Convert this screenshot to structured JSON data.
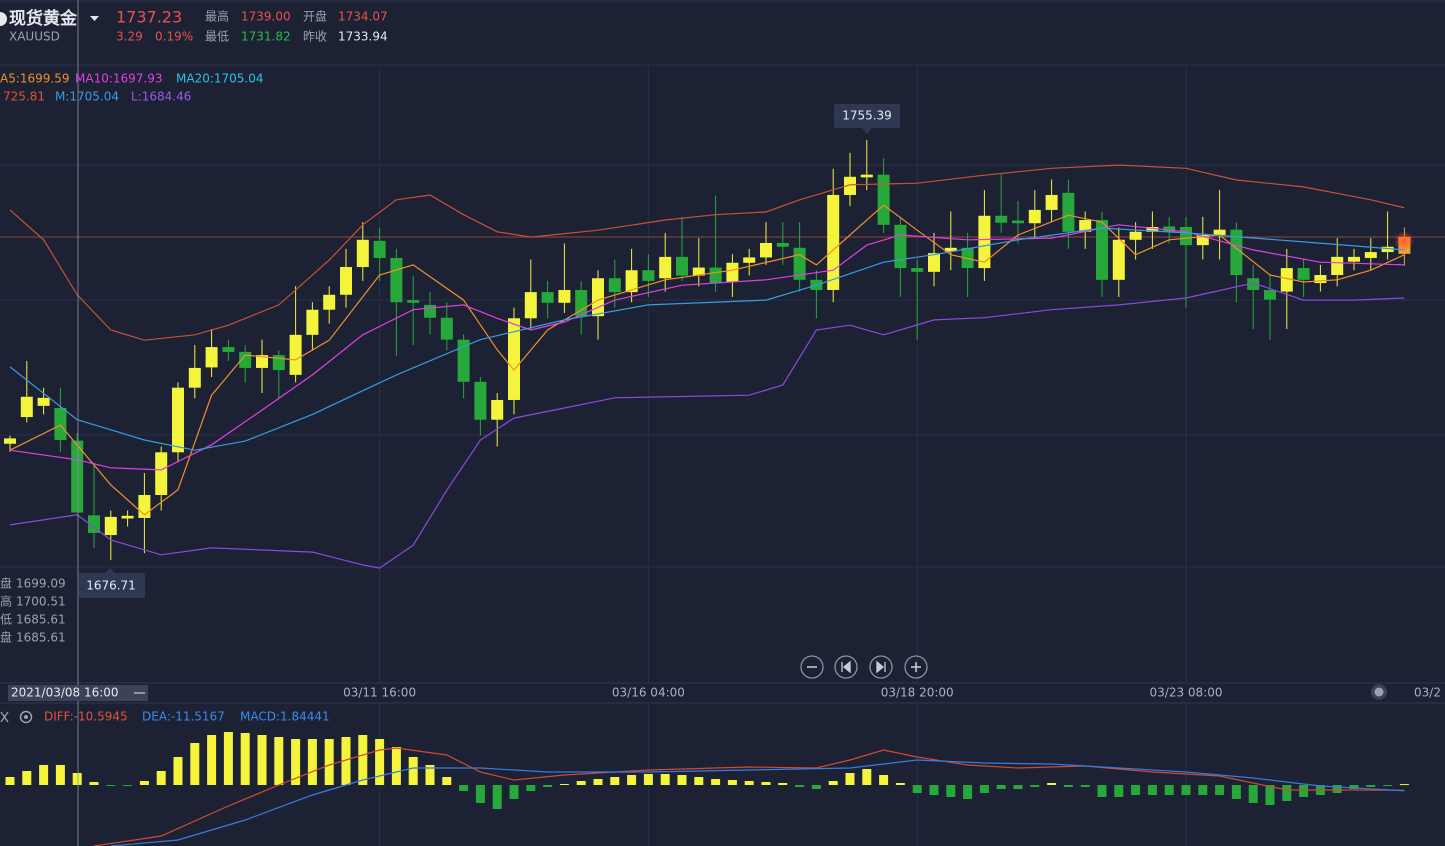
{
  "header": {
    "name": "现货黄金",
    "symbol": "XAUUSD",
    "price": "1737.23",
    "change": "3.29",
    "change_pct": "0.19%",
    "high_label": "最高",
    "high": "1739.00",
    "open_label": "开盘",
    "open": "1734.07",
    "low_label": "最低",
    "low": "1731.82",
    "prev_close_label": "昨收",
    "prev_close": "1733.94"
  },
  "legend_ma": [
    {
      "text": "A5:1699.59",
      "color": "#f0902c"
    },
    {
      "text": "MA10:1697.93",
      "color": "#e040e0"
    },
    {
      "text": "MA20:1705.04",
      "color": "#2fc0e8"
    }
  ],
  "legend_boll": [
    {
      "text": "725.81",
      "color": "#e0503a"
    },
    {
      "text": "M:1705.04",
      "color": "#3a9ae0"
    },
    {
      "text": "L:1684.46",
      "color": "#9a5ae8"
    }
  ],
  "legend_macd": [
    {
      "text": "DIFF:-10.5945",
      "color": "#e0503a"
    },
    {
      "text": "DEA:-11.5167",
      "color": "#3a8ae8"
    },
    {
      "text": "MACD:1.84441",
      "color": "#3a8ae8"
    }
  ],
  "crosshair": {
    "label": "2021/03/08 16:00",
    "fields": [
      "盘",
      "高",
      "低",
      "盘"
    ]
  },
  "x_edge_label": "03/2",
  "chart_data": [
    {
      "type": "candlestick",
      "categories": [
        null,
        null,
        null,
        null,
        null,
        null,
        null,
        null,
        null,
        null,
        null,
        null,
        null,
        null,
        null,
        null,
        null,
        null,
        null,
        null,
        null,
        null,
        "03/11 16:00",
        null,
        null,
        null,
        null,
        null,
        null,
        null,
        null,
        null,
        null,
        null,
        null,
        null,
        null,
        null,
        "03/16 04:00",
        null,
        null,
        null,
        null,
        null,
        null,
        null,
        null,
        null,
        null,
        null,
        null,
        null,
        null,
        null,
        "03/18 20:00",
        null,
        null,
        null,
        null,
        null,
        null,
        null,
        null,
        null,
        null,
        null,
        null,
        null,
        null,
        null,
        "03/23 08:00",
        null,
        null,
        null,
        null,
        null,
        null,
        null,
        null,
        null,
        null,
        null,
        null,
        null
      ],
      "open": [
        1698.5,
        1703.5,
        1705.6,
        1705.2,
        1699.09,
        1685.1,
        1681.4,
        1684.5,
        1684.6,
        1688.9,
        1696.9,
        1709,
        1712.8,
        1716.6,
        1715.7,
        1712.7,
        1715.1,
        1711.4,
        1718.9,
        1723.6,
        1726.4,
        1731.6,
        1736.5,
        1733.3,
        1725.4,
        1724.5,
        1722.1,
        1718,
        1710.1,
        1703,
        1706.7,
        1722,
        1726.9,
        1724.9,
        1727.3,
        1722.4,
        1729.5,
        1726.9,
        1731,
        1729.5,
        1733.5,
        1730,
        1731.5,
        1728.8,
        1732.4,
        1733.4,
        1736.1,
        1735.2,
        1729.2,
        1727.3,
        1745.1,
        1748.4,
        1748.9,
        1739.5,
        1731.4,
        1730.7,
        1734.5,
        1735.2,
        1731.4,
        1741.2,
        1740.3,
        1739.8,
        1742.3,
        1745.5,
        1738.2,
        1740.4,
        1729.2,
        1736.7,
        1738.2,
        1739.2,
        1739.1,
        1735.7,
        1737.6,
        1738.6,
        1729.5,
        1727.3,
        1727,
        1731.4,
        1728.6,
        1730.1,
        1732.6,
        1733.3,
        1734.4,
        1734.07
      ],
      "high": [
        1700,
        1714,
        1709,
        1709,
        1700.51,
        1695,
        1686,
        1686,
        1693,
        1698,
        1710,
        1717,
        1720,
        1718,
        1717,
        1718,
        1716,
        1728,
        1725,
        1728,
        1735,
        1740,
        1739,
        1735,
        1730,
        1727,
        1725,
        1719,
        1711,
        1708,
        1724,
        1733,
        1729,
        1736,
        1729,
        1731,
        1733,
        1735,
        1734,
        1738,
        1741,
        1737,
        1745,
        1734,
        1735,
        1740,
        1740,
        1740,
        1731,
        1750,
        1753,
        1755.39,
        1752,
        1741,
        1733,
        1738,
        1742,
        1738,
        1746,
        1749,
        1744,
        1746,
        1748,
        1748,
        1742,
        1742,
        1739,
        1740,
        1742,
        1741,
        1741,
        1741,
        1746,
        1740,
        1732,
        1730,
        1735,
        1733,
        1732,
        1737,
        1735,
        1737,
        1742,
        1739
      ],
      "low": [
        1697,
        1702.5,
        1704,
        1697,
        1685.61,
        1679,
        1676.71,
        1683,
        1678,
        1686,
        1695,
        1707,
        1711,
        1714,
        1710,
        1708,
        1707,
        1710,
        1716,
        1721,
        1724,
        1729,
        1729,
        1715,
        1717,
        1719,
        1716,
        1707,
        1700,
        1698,
        1704,
        1720,
        1722,
        1723,
        1719,
        1718,
        1724,
        1725,
        1726,
        1727,
        1729,
        1728,
        1727,
        1726,
        1730,
        1732,
        1732,
        1727,
        1722,
        1725,
        1743,
        1746,
        1738,
        1726,
        1718,
        1728,
        1731,
        1726,
        1729,
        1738,
        1736,
        1737,
        1740,
        1735,
        1735,
        1726,
        1726,
        1733,
        1735,
        1736,
        1724,
        1733,
        1733,
        1725,
        1720,
        1718,
        1720,
        1726,
        1727,
        1728,
        1731,
        1731,
        1733,
        1731.82
      ],
      "close": [
        1699.5,
        1707.3,
        1707.1,
        1699.2,
        1685.61,
        1681.8,
        1684.8,
        1685,
        1688.9,
        1696.9,
        1709,
        1712.7,
        1716.6,
        1715.7,
        1712.7,
        1715.1,
        1712.3,
        1718.9,
        1723.6,
        1726.4,
        1731.6,
        1736.7,
        1733.3,
        1725,
        1724.9,
        1722.1,
        1718,
        1710.1,
        1703,
        1706.7,
        1722,
        1726.9,
        1724.9,
        1727.3,
        1722.4,
        1729.5,
        1726.9,
        1731,
        1729,
        1733.5,
        1730,
        1731.5,
        1728.6,
        1732.4,
        1733.4,
        1736.1,
        1735.4,
        1729.2,
        1727.3,
        1745.1,
        1748.5,
        1748.9,
        1739.5,
        1731.4,
        1730.7,
        1734.2,
        1735.2,
        1731.4,
        1741.2,
        1739.9,
        1739.8,
        1742.3,
        1745.1,
        1738.2,
        1740.4,
        1729.2,
        1736.7,
        1738.2,
        1739.1,
        1738.2,
        1735.7,
        1737.6,
        1738.6,
        1730.1,
        1727.3,
        1725.5,
        1731.4,
        1729.2,
        1730.1,
        1733.5,
        1733.5,
        1734.4,
        1735.4,
        1737.23
      ],
      "up_color": "#f4f43c",
      "down_color": "#27a83a",
      "last_color": "#f5a030",
      "price_line_color": "#b8503e",
      "ylim": [
        1654.25,
        1769.44
      ],
      "lines": [
        {
          "color": "#f0902c",
          "x": [
            0,
            3,
            6,
            8,
            10,
            12,
            14,
            17,
            19,
            22,
            24,
            27,
            29,
            30,
            32,
            35,
            39,
            43,
            47,
            48,
            50,
            52,
            54,
            56,
            58,
            60,
            63,
            65,
            67,
            69,
            72,
            75,
            77,
            79,
            81,
            83
          ],
          "values": [
            1697.3,
            1702,
            1690.8,
            1685.2,
            1689.9,
            1707.6,
            1715.1,
            1714.2,
            1717.9,
            1730.1,
            1732,
            1725.4,
            1716.1,
            1712.3,
            1719.8,
            1725.4,
            1729.2,
            1731,
            1733.9,
            1732,
            1737.6,
            1743.2,
            1738.5,
            1733.9,
            1732.5,
            1737.6,
            1741.3,
            1740,
            1733.9,
            1736.7,
            1737.6,
            1730.1,
            1728.8,
            1729.2,
            1731,
            1733.9
          ]
        },
        {
          "color": "#e040e0",
          "x": [
            0,
            4,
            6,
            9,
            12,
            15,
            18,
            21,
            24,
            27,
            29,
            31,
            33,
            36,
            40,
            45,
            49,
            51,
            53,
            57,
            62,
            66,
            70,
            74,
            78,
            83
          ],
          "values": [
            1697.3,
            1695.5,
            1694,
            1693.6,
            1698.3,
            1704.8,
            1711.4,
            1718.9,
            1723.6,
            1724.5,
            1722,
            1719.8,
            1721.3,
            1725.4,
            1728.2,
            1729.2,
            1731,
            1735.7,
            1737.6,
            1736.7,
            1737,
            1739.5,
            1738.2,
            1734.8,
            1732.5,
            1732
          ]
        },
        {
          "color": "#3a9ae0",
          "x": [
            0,
            4,
            8,
            11,
            14,
            18,
            23,
            28,
            33,
            38,
            45,
            48,
            52,
            55,
            60,
            65,
            70,
            77,
            83
          ],
          "values": [
            1712.9,
            1703,
            1699.2,
            1697.3,
            1699,
            1704,
            1711.4,
            1718,
            1721.7,
            1724.5,
            1725.4,
            1728.2,
            1732.5,
            1733.9,
            1736.7,
            1738.9,
            1738,
            1736.3,
            1734.8
          ]
        },
        {
          "color": "#c8503a",
          "x": [
            0,
            2,
            4,
            6,
            8,
            11,
            13,
            16,
            19,
            21,
            23,
            25,
            27,
            29,
            31,
            35,
            39,
            42,
            45,
            47,
            50,
            54,
            58,
            62,
            66,
            70,
            73,
            77,
            81,
            83
          ],
          "values": [
            1742.3,
            1736.7,
            1726.4,
            1719.8,
            1717.9,
            1718.9,
            1720.7,
            1724.5,
            1732.9,
            1739.5,
            1744.2,
            1745.1,
            1741.4,
            1738.2,
            1737.2,
            1738.5,
            1740.4,
            1741.4,
            1741.9,
            1744.2,
            1747,
            1747.3,
            1748.8,
            1750.1,
            1750.7,
            1750.1,
            1747.9,
            1746.6,
            1744.2,
            1742.7
          ]
        },
        {
          "color": "#8a4ae0",
          "x": [
            0,
            4,
            6,
            9,
            12,
            15,
            18,
            21,
            22,
            24,
            26,
            28,
            30,
            33,
            36,
            44,
            46,
            48,
            50,
            52,
            55,
            58,
            62,
            66,
            70,
            74,
            77,
            80,
            83
          ],
          "values": [
            1683.3,
            1685.2,
            1680.5,
            1677.7,
            1679,
            1678.6,
            1678.2,
            1675.8,
            1675.2,
            1679.5,
            1689.8,
            1699.2,
            1703.3,
            1705.2,
            1707.1,
            1707.6,
            1709.5,
            1719.8,
            1720.7,
            1718.9,
            1721.7,
            1722.1,
            1723.6,
            1724.5,
            1725.8,
            1728.6,
            1725.4,
            1725.4,
            1725.8
          ]
        }
      ]
    },
    {
      "type": "bar",
      "values": [
        16,
        28,
        40,
        40,
        24,
        6,
        -2,
        -2,
        8,
        28,
        56,
        84,
        100,
        106,
        104,
        100,
        96,
        92,
        92,
        92,
        96,
        100,
        92,
        76,
        56,
        40,
        16,
        -12,
        -36,
        -48,
        -28,
        -12,
        -4,
        2,
        8,
        12,
        16,
        20,
        22,
        22,
        20,
        16,
        12,
        10,
        8,
        6,
        4,
        -4,
        -8,
        8,
        24,
        32,
        20,
        4,
        -16,
        -20,
        -24,
        -28,
        -16,
        -8,
        -8,
        -4,
        4,
        -4,
        -4,
        -24,
        -24,
        -20,
        -20,
        -20,
        -20,
        -20,
        -20,
        -28,
        -36,
        -40,
        -32,
        -24,
        -20,
        -16,
        -8,
        -4,
        -1,
        1.84441
      ],
      "up_color": "#f4f43c",
      "down_color": "#27a83a",
      "ylim": [
        -122,
        160
      ],
      "lines": [
        {
          "color": "#d04a32",
          "x": [
            5,
            9,
            13,
            16,
            19,
            22,
            23,
            26,
            28,
            30,
            33,
            38,
            44,
            48,
            50,
            52,
            54,
            57,
            60,
            64,
            68,
            72,
            76,
            80,
            83
          ],
          "values": [
            -122,
            -102,
            -42,
            0,
            40,
            70,
            74,
            60,
            26,
            10,
            20,
            30,
            36,
            34,
            50,
            70,
            56,
            40,
            34,
            38,
            26,
            18,
            -10,
            -10,
            -10.5945
          ]
        },
        {
          "color": "#3a7ae0",
          "x": [
            6,
            10,
            14,
            18,
            21,
            24,
            28,
            32,
            38,
            44,
            50,
            54,
            58,
            62,
            66,
            70,
            74,
            78,
            83
          ],
          "values": [
            -122,
            -110,
            -70,
            -20,
            10,
            34,
            34,
            26,
            26,
            30,
            34,
            50,
            44,
            42,
            34,
            26,
            14,
            -2,
            -11.5167
          ]
        }
      ]
    }
  ]
}
